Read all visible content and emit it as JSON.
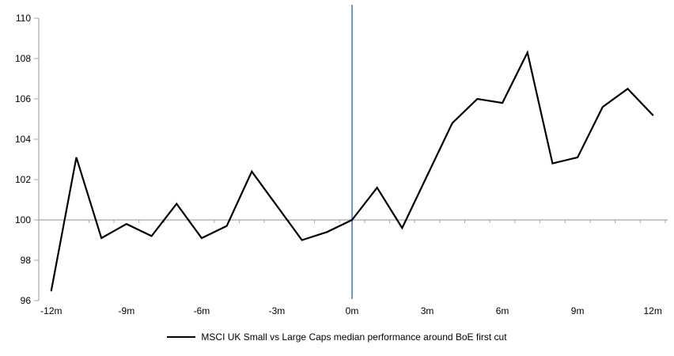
{
  "chart_data": {
    "type": "line",
    "title": "",
    "x": [
      -12,
      -11,
      -10,
      -9,
      -8,
      -7,
      -6,
      -5,
      -4,
      -3,
      -2,
      -1,
      0,
      1,
      2,
      3,
      4,
      5,
      6,
      7,
      8,
      9,
      10,
      11,
      12
    ],
    "series": [
      {
        "name": "MSCI UK Small vs Large Caps median performance around BoE first cut",
        "color": "#000000",
        "values": [
          96.5,
          103.1,
          99.1,
          99.8,
          99.2,
          100.8,
          99.1,
          99.7,
          102.4,
          100.7,
          99.0,
          99.4,
          100.0,
          101.6,
          99.6,
          102.2,
          104.8,
          106.0,
          105.8,
          108.3,
          102.8,
          103.1,
          105.6,
          106.5,
          105.2
        ]
      }
    ],
    "x_tick_positions": [
      -12,
      -9,
      -6,
      -3,
      0,
      3,
      6,
      9,
      12
    ],
    "x_tick_labels": [
      "-12m",
      "-9m",
      "-6m",
      "-3m",
      "0m",
      "3m",
      "6m",
      "9m",
      "12m"
    ],
    "y_ticks": [
      110,
      108,
      106,
      104,
      102,
      100,
      98,
      96
    ],
    "ylim": [
      96,
      110
    ],
    "xlim": [
      -12.5,
      12.5
    ],
    "baseline": 100,
    "event_line": {
      "x": 0,
      "color": "#5288C8"
    },
    "axis_color": "#A6A6A6",
    "grid": "off",
    "legend_position": "bottom"
  }
}
